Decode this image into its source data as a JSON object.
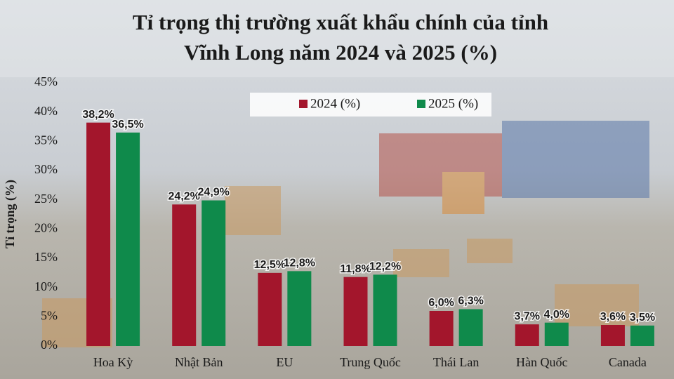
{
  "chart_data": {
    "type": "bar",
    "title": [
      "Tỉ trọng thị trường xuất khẩu chính của tỉnh",
      "Vĩnh Long năm 2024 và 2025 (%)"
    ],
    "y_label": "Tỉ trọng (%)",
    "categories": [
      "Hoa Kỳ",
      "Nhật Bản",
      "EU",
      "Trung Quốc",
      "Thái Lan",
      "Hàn Quốc",
      "Canada"
    ],
    "series": [
      {
        "name": "2024 (%)",
        "color": "#a3162c",
        "values": [
          38.2,
          24.2,
          12.5,
          11.8,
          6.0,
          3.7,
          3.6
        ],
        "value_labels": [
          "38,2%",
          "24,2%",
          "12,5%",
          "11,8%",
          "6,0%",
          "3,7%",
          "3,6%"
        ]
      },
      {
        "name": "2025 (%)",
        "color": "#0f8a4b",
        "values": [
          36.5,
          24.9,
          12.8,
          12.2,
          6.3,
          4.0,
          3.5
        ],
        "value_labels": [
          "36,5%",
          "24,9%",
          "12,8%",
          "12,2%",
          "6,3%",
          "4,0%",
          "3,5%"
        ]
      }
    ],
    "ylim": [
      0,
      45
    ],
    "yticks": [
      {
        "value": 0,
        "label": "0%"
      },
      {
        "value": 5,
        "label": "5%"
      },
      {
        "value": 10,
        "label": "10%"
      },
      {
        "value": 15,
        "label": "15%"
      },
      {
        "value": 20,
        "label": "20%"
      },
      {
        "value": 25,
        "label": "25%"
      },
      {
        "value": 30,
        "label": "30%"
      },
      {
        "value": 35,
        "label": "35%"
      },
      {
        "value": 40,
        "label": "40%"
      },
      {
        "value": 45,
        "label": "45%"
      }
    ],
    "legend": "top-center"
  }
}
